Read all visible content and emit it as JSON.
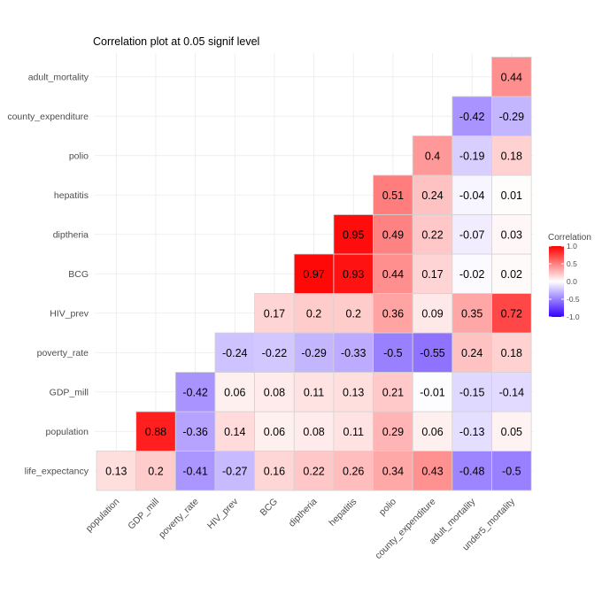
{
  "chart_data": {
    "type": "heatmap",
    "title": "Correlation plot at 0.05 signif level",
    "x_labels": [
      "population",
      "GDP_mill",
      "poverty_rate",
      "HIV_prev",
      "BCG",
      "diptheria",
      "hepatitis",
      "polio",
      "county_expenditure",
      "adult_mortality",
      "under5_mortality"
    ],
    "y_labels": [
      "life_expectancy",
      "population",
      "GDP_mill",
      "poverty_rate",
      "HIV_prev",
      "BCG",
      "diptheria",
      "hepatitis",
      "polio",
      "county_expenditure",
      "adult_mortality"
    ],
    "rows": [
      [
        0.13,
        0.2,
        -0.41,
        -0.27,
        0.16,
        0.22,
        0.26,
        0.34,
        0.43,
        -0.48,
        -0.5
      ],
      [
        null,
        0.88,
        -0.36,
        0.14,
        0.06,
        0.08,
        0.11,
        0.29,
        0.06,
        -0.13,
        0.05
      ],
      [
        null,
        null,
        -0.42,
        0.06,
        0.08,
        0.11,
        0.13,
        0.21,
        -0.01,
        -0.15,
        -0.14
      ],
      [
        null,
        null,
        null,
        -0.24,
        -0.22,
        -0.29,
        -0.33,
        -0.5,
        -0.55,
        0.24,
        0.18
      ],
      [
        null,
        null,
        null,
        null,
        0.17,
        0.2,
        0.2,
        0.36,
        0.09,
        0.35,
        0.72
      ],
      [
        null,
        null,
        null,
        null,
        null,
        0.97,
        0.93,
        0.44,
        0.17,
        -0.02,
        0.02
      ],
      [
        null,
        null,
        null,
        null,
        null,
        null,
        0.95,
        0.49,
        0.22,
        -0.07,
        0.03
      ],
      [
        null,
        null,
        null,
        null,
        null,
        null,
        null,
        0.51,
        0.24,
        -0.04,
        0.01
      ],
      [
        null,
        null,
        null,
        null,
        null,
        null,
        null,
        null,
        0.4,
        -0.19,
        0.18
      ],
      [
        null,
        null,
        null,
        null,
        null,
        null,
        null,
        null,
        null,
        -0.42,
        -0.29
      ],
      [
        null,
        null,
        null,
        null,
        null,
        null,
        null,
        null,
        null,
        null,
        0.44
      ]
    ],
    "value_range": [
      -1,
      1
    ],
    "colors": {
      "low": "#3300ff",
      "mid": "#ffffff",
      "high": "#ff0000",
      "cell_border": "#d3d3d3",
      "grid": "#ebebeb"
    },
    "legend": {
      "title": "Correlation",
      "ticks": [
        1.0,
        0.5,
        0.0,
        -0.5,
        -1.0
      ],
      "tick_labels": [
        "1.0",
        "0.5",
        "0.0",
        "-0.5",
        "-1.0"
      ],
      "position": "right"
    }
  }
}
